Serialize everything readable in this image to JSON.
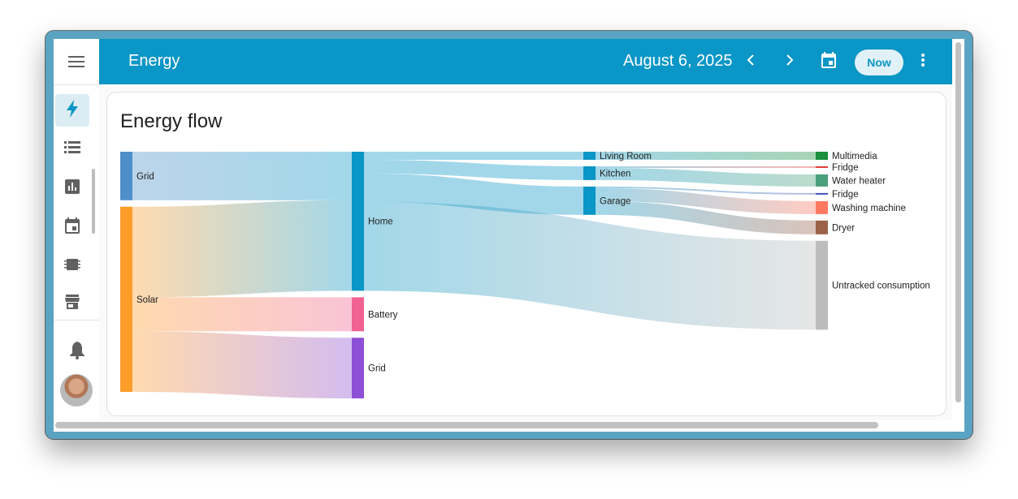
{
  "app": {
    "title": "Energy",
    "date": "August 6, 2025",
    "now_label": "Now"
  },
  "sidebar": {
    "items": [
      {
        "icon": "lightning-bolt-icon",
        "active": true
      },
      {
        "icon": "list-icon",
        "active": false
      },
      {
        "icon": "bar-chart-icon",
        "active": false
      },
      {
        "icon": "calendar-icon",
        "active": false
      },
      {
        "icon": "chip-icon",
        "active": false
      },
      {
        "icon": "store-icon",
        "active": false
      }
    ],
    "bottom": [
      {
        "icon": "bell-icon"
      },
      {
        "icon": "avatar"
      }
    ]
  },
  "card": {
    "title": "Energy flow"
  },
  "chart_data": {
    "type": "sankey",
    "nodes": [
      {
        "id": "grid_in",
        "label": "Grid",
        "color": "#4e8fc9",
        "column": 0
      },
      {
        "id": "solar",
        "label": "Solar",
        "color": "#ff9d2b",
        "column": 0
      },
      {
        "id": "home",
        "label": "Home",
        "color": "#0a96c6",
        "column": 1
      },
      {
        "id": "battery",
        "label": "Battery",
        "color": "#f06292",
        "column": 1
      },
      {
        "id": "grid_out",
        "label": "Grid",
        "color": "#8e50d6",
        "column": 1
      },
      {
        "id": "living",
        "label": "Living Room",
        "color": "#0a96c6",
        "column": 2
      },
      {
        "id": "kitchen",
        "label": "Kitchen",
        "color": "#0a96c6",
        "column": 2
      },
      {
        "id": "garage",
        "label": "Garage",
        "color": "#0a96c6",
        "column": 2
      },
      {
        "id": "multimedia",
        "label": "Multimedia",
        "color": "#1a8f3e",
        "column": 3
      },
      {
        "id": "fridge1",
        "label": "Fridge",
        "color": "#e53935",
        "column": 3
      },
      {
        "id": "waterheater",
        "label": "Water heater",
        "color": "#4aa07a",
        "column": 3
      },
      {
        "id": "fridge2",
        "label": "Fridge",
        "color": "#3f51b5",
        "column": 3
      },
      {
        "id": "washing",
        "label": "Washing machine",
        "color": "#ff7961",
        "column": 3
      },
      {
        "id": "dryer",
        "label": "Dryer",
        "color": "#9c6149",
        "column": 3
      },
      {
        "id": "untracked",
        "label": "Untracked consumption",
        "color": "#bdbdbd",
        "column": 3
      }
    ],
    "links": [
      {
        "source": "grid_in",
        "target": "home",
        "value": 60
      },
      {
        "source": "solar",
        "target": "home",
        "value": 112
      },
      {
        "source": "solar",
        "target": "battery",
        "value": 42
      },
      {
        "source": "solar",
        "target": "grid_out",
        "value": 75
      },
      {
        "source": "home",
        "target": "living",
        "value": 10
      },
      {
        "source": "home",
        "target": "kitchen",
        "value": 17
      },
      {
        "source": "home",
        "target": "garage",
        "value": 35
      },
      {
        "source": "home",
        "target": "untracked",
        "value": 110
      },
      {
        "source": "living",
        "target": "multimedia",
        "value": 10
      },
      {
        "source": "kitchen",
        "target": "fridge1",
        "value": 2
      },
      {
        "source": "kitchen",
        "target": "waterheater",
        "value": 15
      },
      {
        "source": "garage",
        "target": "fridge2",
        "value": 2
      },
      {
        "source": "garage",
        "target": "washing",
        "value": 16
      },
      {
        "source": "garage",
        "target": "dryer",
        "value": 17
      }
    ]
  }
}
